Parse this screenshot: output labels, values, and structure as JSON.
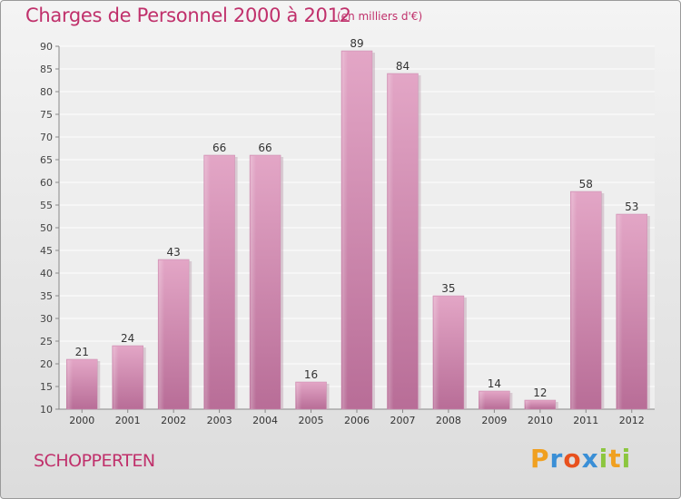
{
  "title": "Charges de Personnel 2000 à 2012",
  "unit_note": "(en milliers d'€)",
  "commune": "SCHOPPERTEN",
  "brand": {
    "letters": [
      "P",
      "r",
      "o",
      "x",
      "i",
      "t",
      "i"
    ],
    "colors": [
      "#f0a020",
      "#3a8fd6",
      "#e8511e",
      "#3a8fd6",
      "#8cc63f",
      "#f0a020",
      "#8cc63f"
    ]
  },
  "colors": {
    "bar": "#d98db5",
    "bar_dark": "#b86a94",
    "title": "#c0306b"
  },
  "chart_data": {
    "type": "bar",
    "categories": [
      "2000",
      "2001",
      "2002",
      "2003",
      "2004",
      "2005",
      "2006",
      "2007",
      "2008",
      "2009",
      "2010",
      "2011",
      "2012"
    ],
    "values": [
      21,
      24,
      43,
      66,
      66,
      16,
      89,
      84,
      35,
      14,
      12,
      58,
      53
    ],
    "ylim": [
      10,
      90
    ],
    "yticks": [
      10,
      15,
      20,
      25,
      30,
      35,
      40,
      45,
      50,
      55,
      60,
      65,
      70,
      75,
      80,
      85,
      90
    ],
    "grid": true,
    "title": "Charges de Personnel 2000 à 2012",
    "xlabel": "",
    "ylabel": ""
  }
}
